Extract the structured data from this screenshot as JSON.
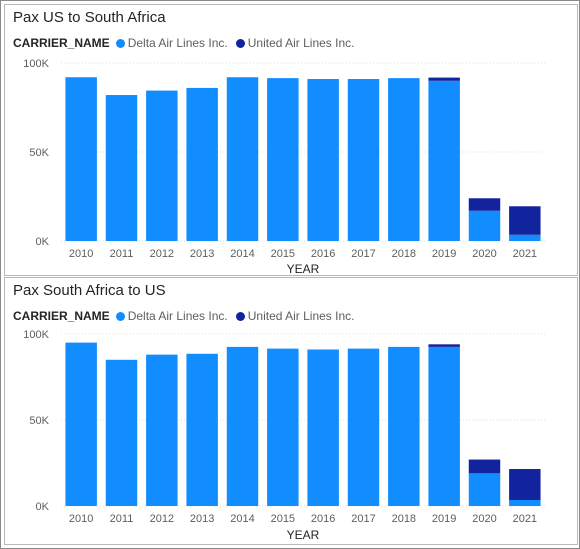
{
  "chart_data": [
    {
      "type": "bar",
      "stacked": true,
      "title": "Pax US to South Africa",
      "legend_title": "CARRIER_NAME",
      "xlabel": "YEAR",
      "ylabel": "",
      "ylim": [
        0,
        100000
      ],
      "yticks": [
        0,
        50000,
        100000
      ],
      "yticklabels": [
        "0K",
        "50K",
        "100K"
      ],
      "grid": true,
      "legend_position": "top-left",
      "categories": [
        "2010",
        "2011",
        "2012",
        "2013",
        "2014",
        "2015",
        "2016",
        "2017",
        "2018",
        "2019",
        "2020",
        "2021"
      ],
      "series": [
        {
          "name": "Delta Air Lines Inc.",
          "color": "#118DFF",
          "values": [
            92000,
            82000,
            84500,
            86000,
            92000,
            91500,
            91000,
            91000,
            91500,
            90000,
            17000,
            3500
          ]
        },
        {
          "name": "United Air Lines Inc.",
          "color": "#12239E",
          "values": [
            0,
            0,
            0,
            0,
            0,
            0,
            0,
            0,
            0,
            1800,
            7000,
            16000
          ]
        }
      ]
    },
    {
      "type": "bar",
      "stacked": true,
      "title": "Pax South Africa to US",
      "legend_title": "CARRIER_NAME",
      "xlabel": "YEAR",
      "ylabel": "",
      "ylim": [
        0,
        100000
      ],
      "yticks": [
        0,
        50000,
        100000
      ],
      "yticklabels": [
        "0K",
        "50K",
        "100K"
      ],
      "grid": true,
      "legend_position": "top-left",
      "categories": [
        "2010",
        "2011",
        "2012",
        "2013",
        "2014",
        "2015",
        "2016",
        "2017",
        "2018",
        "2019",
        "2020",
        "2021"
      ],
      "series": [
        {
          "name": "Delta Air Lines Inc.",
          "color": "#118DFF",
          "values": [
            95000,
            85000,
            88000,
            88500,
            92500,
            91500,
            91000,
            91500,
            92500,
            92500,
            19000,
            3500
          ]
        },
        {
          "name": "United Air Lines Inc.",
          "color": "#12239E",
          "values": [
            0,
            0,
            0,
            0,
            0,
            0,
            0,
            0,
            0,
            1500,
            8000,
            18000
          ]
        }
      ]
    }
  ]
}
